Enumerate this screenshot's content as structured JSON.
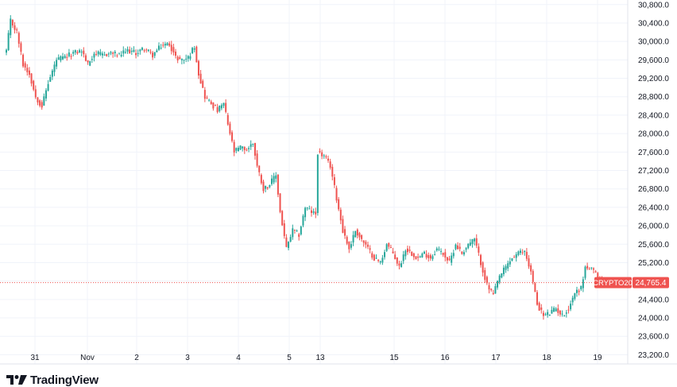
{
  "chart_data": {
    "type": "candlestick",
    "symbol": "CRYPTO20",
    "last_price": 24765.4,
    "last_price_label": "24,765.4",
    "ylim": [
      23000,
      30900
    ],
    "y_ticks": [
      23200,
      23600,
      24000,
      24400,
      24800,
      25200,
      25600,
      26000,
      26400,
      26800,
      27200,
      27600,
      28000,
      28400,
      28800,
      29200,
      29600,
      30000,
      30400,
      30800
    ],
    "y_tick_labels": [
      "23,200.0",
      "23,600.0",
      "24,000.0",
      "24,400.0",
      "24,800.0",
      "25,200.0",
      "25,600.0",
      "26,000.0",
      "26,400.0",
      "26,800.0",
      "27,200.0",
      "27,600.0",
      "28,000.0",
      "28,400.0",
      "28,800.0",
      "29,200.0",
      "29,600.0",
      "30,000.0",
      "30,400.0",
      "30,800.0"
    ],
    "x_labels": [
      "31",
      "Nov",
      "2",
      "3",
      "4",
      "5",
      "13",
      "15",
      "16",
      "17",
      "18",
      "19"
    ],
    "colors": {
      "up": "#26a69a",
      "down": "#ef5350",
      "price_line": "#ef5350",
      "grid": "#f0f3fa"
    },
    "grid": true,
    "close_path": [
      [
        0,
        29800
      ],
      [
        2,
        30450
      ],
      [
        5,
        30200
      ],
      [
        8,
        29500
      ],
      [
        11,
        29300
      ],
      [
        14,
        28800
      ],
      [
        17,
        28600
      ],
      [
        20,
        29100
      ],
      [
        24,
        29600
      ],
      [
        28,
        29650
      ],
      [
        32,
        29750
      ],
      [
        36,
        29800
      ],
      [
        39,
        29500
      ],
      [
        42,
        29750
      ],
      [
        46,
        29700
      ],
      [
        50,
        29750
      ],
      [
        54,
        29700
      ],
      [
        58,
        29800
      ],
      [
        62,
        29750
      ],
      [
        66,
        29850
      ],
      [
        70,
        29700
      ],
      [
        74,
        29900
      ],
      [
        78,
        29950
      ],
      [
        81,
        29650
      ],
      [
        84,
        29600
      ],
      [
        87,
        29650
      ],
      [
        90,
        29900
      ],
      [
        92,
        29300
      ],
      [
        95,
        28800
      ],
      [
        98,
        28650
      ],
      [
        101,
        28500
      ],
      [
        104,
        28650
      ],
      [
        106,
        28200
      ],
      [
        109,
        27600
      ],
      [
        112,
        27700
      ],
      [
        115,
        27650
      ],
      [
        118,
        27800
      ],
      [
        120,
        27300
      ],
      [
        123,
        26800
      ],
      [
        126,
        26900
      ],
      [
        129,
        27100
      ],
      [
        131,
        26300
      ],
      [
        134,
        25500
      ],
      [
        137,
        25900
      ],
      [
        140,
        25800
      ],
      [
        143,
        26400
      ],
      [
        146,
        26300
      ],
      [
        148,
        26250
      ],
      [
        149,
        27600
      ],
      [
        152,
        27500
      ],
      [
        155,
        27300
      ],
      [
        158,
        26600
      ],
      [
        161,
        25900
      ],
      [
        164,
        25500
      ],
      [
        167,
        25900
      ],
      [
        170,
        25700
      ],
      [
        173,
        25500
      ],
      [
        176,
        25300
      ],
      [
        179,
        25200
      ],
      [
        182,
        25600
      ],
      [
        185,
        25400
      ],
      [
        188,
        25100
      ],
      [
        191,
        25500
      ],
      [
        194,
        25400
      ],
      [
        197,
        25300
      ],
      [
        200,
        25400
      ],
      [
        203,
        25300
      ],
      [
        206,
        25500
      ],
      [
        209,
        25400
      ],
      [
        212,
        25200
      ],
      [
        215,
        25600
      ],
      [
        218,
        25400
      ],
      [
        221,
        25600
      ],
      [
        224,
        25700
      ],
      [
        227,
        25200
      ],
      [
        230,
        24700
      ],
      [
        233,
        24500
      ],
      [
        236,
        24900
      ],
      [
        239,
        25100
      ],
      [
        242,
        25300
      ],
      [
        245,
        25400
      ],
      [
        248,
        25450
      ],
      [
        251,
        25000
      ],
      [
        254,
        24300
      ],
      [
        257,
        24050
      ],
      [
        260,
        24100
      ],
      [
        263,
        24200
      ],
      [
        266,
        24050
      ],
      [
        269,
        24200
      ],
      [
        272,
        24550
      ],
      [
        275,
        24650
      ],
      [
        277,
        25100
      ],
      [
        280,
        25050
      ],
      [
        283,
        24900
      ],
      [
        286,
        24765
      ]
    ]
  }
}
